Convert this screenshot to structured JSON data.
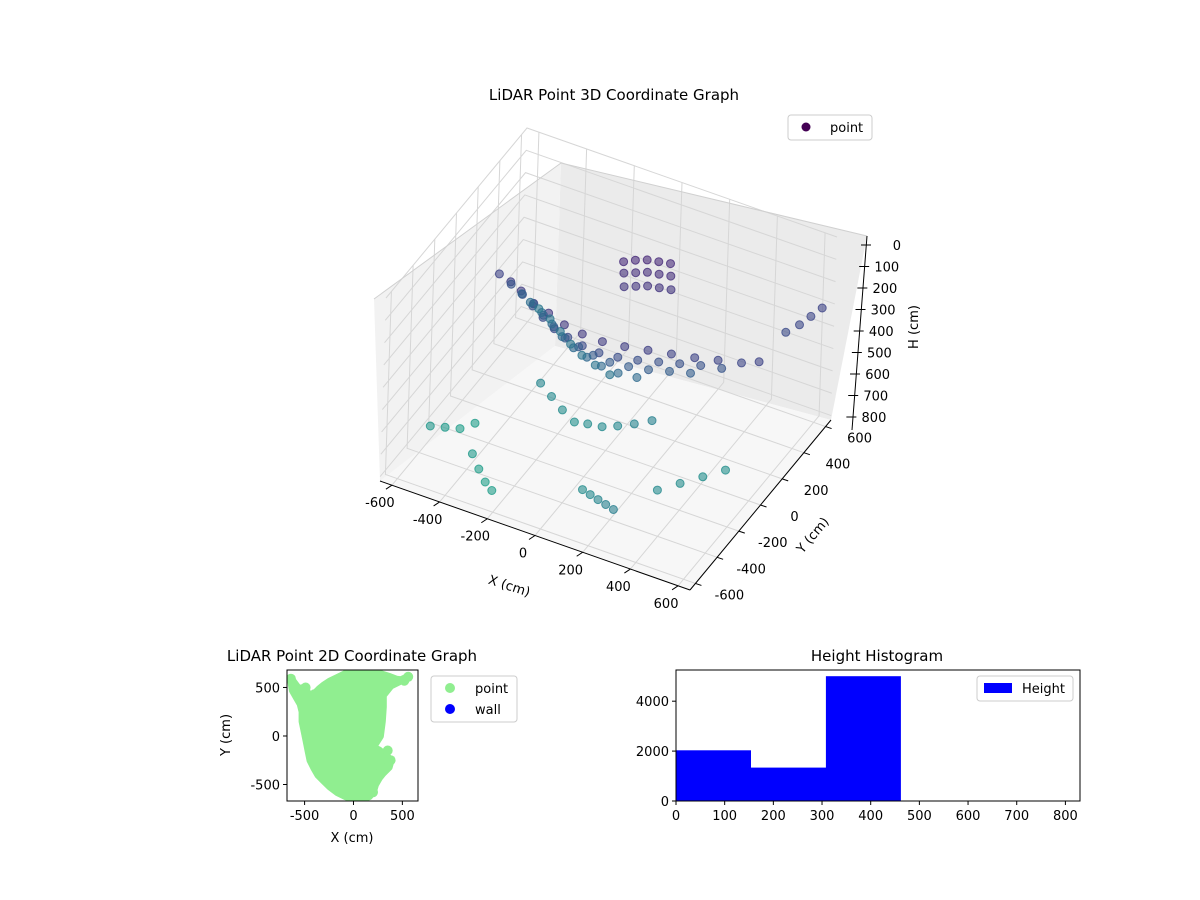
{
  "chart_data": [
    {
      "type": "scatter",
      "projection": "3d",
      "title": "LiDAR Point 3D Coordinate Graph",
      "xlabel": "X (cm)",
      "ylabel": "Y (cm)",
      "zlabel": "H (cm)",
      "xticks": [
        -600,
        -400,
        -200,
        0,
        200,
        400,
        600
      ],
      "yticks": [
        -600,
        -400,
        -200,
        0,
        200,
        400,
        600
      ],
      "zticks": [
        0,
        100,
        200,
        300,
        400,
        500,
        600,
        700,
        800
      ],
      "xlim": [
        -650,
        650
      ],
      "ylim": [
        -650,
        650
      ],
      "zlim": [
        0,
        820
      ],
      "z_inverted": true,
      "grid": true,
      "legend": {
        "entries": [
          "point"
        ],
        "position": "top-right"
      },
      "colormap": "viridis",
      "series": [
        {
          "name": "point",
          "points": [
            [
              -520,
              130,
              300
            ],
            [
              -450,
              80,
              280
            ],
            [
              -380,
              20,
              260
            ],
            [
              -300,
              -40,
              250
            ],
            [
              -220,
              -80,
              240
            ],
            [
              -140,
              -110,
              245
            ],
            [
              -60,
              -120,
              250
            ],
            [
              20,
              -110,
              260
            ],
            [
              100,
              -80,
              270
            ],
            [
              180,
              -40,
              280
            ],
            [
              260,
              0,
              290
            ],
            [
              340,
              40,
              300
            ],
            [
              420,
              80,
              305
            ],
            [
              500,
              120,
              310
            ],
            [
              560,
              150,
              300
            ],
            [
              -500,
              200,
              380
            ],
            [
              -430,
              150,
              370
            ],
            [
              -360,
              90,
              360
            ],
            [
              -290,
              30,
              350
            ],
            [
              -220,
              -20,
              345
            ],
            [
              -150,
              -50,
              340
            ],
            [
              -80,
              -70,
              340
            ],
            [
              -10,
              -70,
              345
            ],
            [
              60,
              -50,
              350
            ],
            [
              130,
              -20,
              355
            ],
            [
              200,
              20,
              360
            ],
            [
              270,
              60,
              365
            ],
            [
              340,
              100,
              370
            ],
            [
              410,
              140,
              380
            ],
            [
              -480,
              260,
              450
            ],
            [
              -410,
              210,
              440
            ],
            [
              -340,
              150,
              430
            ],
            [
              -270,
              90,
              420
            ],
            [
              -200,
              40,
              415
            ],
            [
              -130,
              10,
              410
            ],
            [
              -60,
              -10,
              410
            ],
            [
              10,
              -10,
              415
            ],
            [
              80,
              10,
              420
            ],
            [
              150,
              40,
              425
            ],
            [
              220,
              80,
              430
            ],
            [
              290,
              120,
              435
            ],
            [
              -470,
              320,
              520
            ],
            [
              -400,
              270,
              510
            ],
            [
              -330,
              210,
              500
            ],
            [
              -260,
              150,
              495
            ],
            [
              -190,
              100,
              490
            ],
            [
              -120,
              70,
              488
            ],
            [
              -50,
              50,
              490
            ],
            [
              20,
              50,
              495
            ],
            [
              90,
              70,
              500
            ],
            [
              -460,
              380,
              580
            ],
            [
              -390,
              330,
              570
            ],
            [
              -320,
              270,
              565
            ],
            [
              -250,
              210,
              560
            ],
            [
              -180,
              160,
              555
            ],
            [
              -110,
              130,
              555
            ],
            [
              -40,
              110,
              560
            ],
            [
              -300,
              50,
              660
            ],
            [
              -240,
              20,
              680
            ],
            [
              -180,
              -10,
              700
            ],
            [
              -120,
              -30,
              720
            ],
            [
              -60,
              -40,
              700
            ],
            [
              0,
              -40,
              690
            ],
            [
              60,
              -30,
              670
            ],
            [
              120,
              -10,
              650
            ],
            [
              180,
              20,
              630
            ],
            [
              -80,
              300,
              180
            ],
            [
              -40,
              320,
              170
            ],
            [
              0,
              340,
              165
            ],
            [
              40,
              360,
              170
            ],
            [
              80,
              380,
              175
            ],
            [
              -60,
              260,
              200
            ],
            [
              -20,
              280,
              195
            ],
            [
              20,
              300,
              190
            ],
            [
              60,
              320,
              195
            ],
            [
              100,
              340,
              200
            ],
            [
              -40,
              220,
              230
            ],
            [
              0,
              240,
              225
            ],
            [
              40,
              260,
              220
            ],
            [
              80,
              280,
              225
            ],
            [
              120,
              300,
              230
            ],
            [
              300,
              -600,
              620
            ],
            [
              250,
              -560,
              640
            ],
            [
              200,
              -520,
              660
            ],
            [
              150,
              -480,
              680
            ],
            [
              100,
              -440,
              700
            ],
            [
              350,
              -300,
              690
            ],
            [
              400,
              -200,
              700
            ],
            [
              450,
              -100,
              710
            ],
            [
              500,
              0,
              720
            ],
            [
              550,
              420,
              330
            ],
            [
              580,
              480,
              320
            ],
            [
              600,
              540,
              310
            ],
            [
              620,
              600,
              300
            ],
            [
              -600,
              -300,
              760
            ],
            [
              -560,
              -250,
              780
            ],
            [
              -520,
              -200,
              800
            ],
            [
              -480,
              -150,
              790
            ],
            [
              -400,
              -350,
              780
            ],
            [
              -350,
              -400,
              800
            ],
            [
              -300,
              -450,
              810
            ],
            [
              -250,
              -500,
              800
            ]
          ]
        }
      ]
    },
    {
      "type": "scatter",
      "title": "LiDAR Point 2D Coordinate Graph",
      "xlabel": "X (cm)",
      "ylabel": "Y (cm)",
      "xticks": [
        -500,
        0,
        500
      ],
      "yticks": [
        -500,
        0,
        500
      ],
      "xlim": [
        -680,
        660
      ],
      "ylim": [
        -670,
        680
      ],
      "grid": false,
      "legend": {
        "entries": [
          "point",
          "wall"
        ],
        "position": "outside-right"
      },
      "series": [
        {
          "name": "point",
          "color": "#90ee90",
          "region": "filled point cloud"
        },
        {
          "name": "wall",
          "color": "#0000ff",
          "points": []
        }
      ],
      "outline_points": [
        [
          -640,
          590
        ],
        [
          -620,
          560
        ],
        [
          -560,
          480
        ],
        [
          -500,
          500
        ],
        [
          -470,
          440
        ],
        [
          -430,
          380
        ],
        [
          -390,
          440
        ],
        [
          -350,
          480
        ],
        [
          -300,
          520
        ],
        [
          -240,
          560
        ],
        [
          -160,
          600
        ],
        [
          -80,
          640
        ],
        [
          0,
          660
        ],
        [
          80,
          670
        ],
        [
          160,
          660
        ],
        [
          240,
          650
        ],
        [
          300,
          630
        ],
        [
          360,
          610
        ],
        [
          440,
          580
        ],
        [
          520,
          570
        ],
        [
          560,
          610
        ],
        [
          380,
          520
        ],
        [
          300,
          420
        ],
        [
          300,
          300
        ],
        [
          290,
          150
        ],
        [
          270,
          0
        ],
        [
          220,
          -80
        ],
        [
          200,
          -120
        ],
        [
          260,
          -150
        ],
        [
          320,
          -200
        ],
        [
          380,
          -250
        ],
        [
          360,
          -320
        ],
        [
          300,
          -380
        ],
        [
          260,
          -430
        ],
        [
          220,
          -500
        ],
        [
          200,
          -570
        ],
        [
          160,
          -620
        ],
        [
          80,
          -650
        ],
        [
          0,
          -650
        ],
        [
          -80,
          -620
        ],
        [
          -160,
          -580
        ],
        [
          -240,
          -520
        ],
        [
          -300,
          -460
        ],
        [
          -360,
          -400
        ],
        [
          -400,
          -330
        ],
        [
          -440,
          -250
        ],
        [
          -460,
          -150
        ],
        [
          -480,
          -50
        ],
        [
          -500,
          50
        ],
        [
          -520,
          150
        ],
        [
          -520,
          250
        ],
        [
          -540,
          330
        ],
        [
          -580,
          400
        ],
        [
          -620,
          470
        ]
      ],
      "outlier_points": [
        [
          -640,
          590
        ],
        [
          -560,
          480
        ],
        [
          -490,
          500
        ],
        [
          -400,
          430
        ],
        [
          -300,
          480
        ],
        [
          560,
          610
        ],
        [
          520,
          570
        ],
        [
          330,
          -200
        ],
        [
          280,
          -320
        ],
        [
          380,
          -250
        ],
        [
          300,
          -360
        ],
        [
          200,
          -580
        ],
        [
          350,
          -150
        ],
        [
          250,
          -400
        ]
      ]
    },
    {
      "type": "histogram",
      "title": "Height Histogram",
      "xlabel": "",
      "ylabel": "",
      "xticks": [
        0,
        100,
        200,
        300,
        400,
        500,
        600,
        700,
        800
      ],
      "yticks": [
        0,
        2000,
        4000
      ],
      "xlim": [
        0,
        830
      ],
      "ylim": [
        0,
        5250
      ],
      "color": "#0000ff",
      "legend": {
        "entries": [
          "Height"
        ],
        "position": "top-right"
      },
      "bins": [
        {
          "start": 0,
          "end": 154,
          "count": 2030
        },
        {
          "start": 154,
          "end": 308,
          "count": 1340
        },
        {
          "start": 308,
          "end": 462,
          "count": 5000
        },
        {
          "start": 462,
          "end": 616,
          "count": 0
        },
        {
          "start": 616,
          "end": 770,
          "count": 0
        }
      ]
    }
  ]
}
